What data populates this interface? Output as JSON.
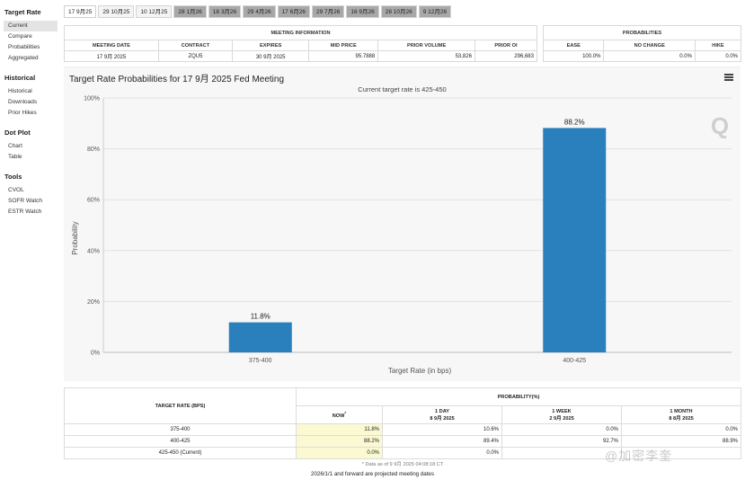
{
  "sidebar": {
    "sections": [
      {
        "heading": "Target Rate",
        "items": [
          "Current",
          "Compare",
          "Probabilities",
          "Aggregated"
        ]
      },
      {
        "heading": "Historical",
        "items": [
          "Historical",
          "Downloads",
          "Prior Hikes"
        ]
      },
      {
        "heading": "Dot Plot",
        "items": [
          "Chart",
          "Table"
        ]
      },
      {
        "heading": "Tools",
        "items": [
          "CVOL",
          "SOFR Watch",
          "ESTR Watch"
        ]
      }
    ],
    "active": "Current"
  },
  "tabs": [
    "17 9月25",
    "29 10月25",
    "10 12月25",
    "28 1月26",
    "18 3月26",
    "29 4月26",
    "17 6月26",
    "29 7月26",
    "16 9月26",
    "28 10月26",
    "9 12月26"
  ],
  "meeting_info": {
    "title": "MEETING INFORMATION",
    "headers": [
      "MEETING DATE",
      "CONTRACT",
      "EXPIRES",
      "MID PRICE",
      "PRIOR VOLUME",
      "PRIOR OI"
    ],
    "values": [
      "17 9月 2025",
      "ZQU5",
      "30 9月 2025",
      "95.7888",
      "53,826",
      "296,683"
    ]
  },
  "probabilities_info": {
    "title": "PROBABILITIES",
    "headers": [
      "EASE",
      "NO CHANGE",
      "HIKE"
    ],
    "values": [
      "100.0%",
      "0.0%",
      "0.0%"
    ]
  },
  "chart": {
    "title": "Target Rate Probabilities for 17 9月 2025 Fed Meeting",
    "subtitle": "Current target rate is 425-450",
    "watermark_letter": "Q"
  },
  "chart_data": {
    "type": "bar",
    "categories": [
      "375-400",
      "400-425"
    ],
    "values": [
      11.8,
      88.2
    ],
    "data_labels": [
      "11.8%",
      "88.2%"
    ],
    "xlabel": "Target Rate (in bps)",
    "ylabel": "Probability",
    "ylim": [
      0,
      100
    ],
    "yticks": [
      "0%",
      "20%",
      "40%",
      "60%",
      "80%",
      "100%"
    ],
    "bar_color": "#2a7fbd",
    "grid": true,
    "legend": "none"
  },
  "prob_table": {
    "col_target": "TARGET RATE (BPS)",
    "col_group": "PROBABILITY(%)",
    "columns": [
      {
        "label": "NOW",
        "sup": "*",
        "sub": ""
      },
      {
        "label": "1 DAY",
        "sup": "",
        "sub": "8 9月 2025"
      },
      {
        "label": "1 WEEK",
        "sup": "",
        "sub": "2 9月 2025"
      },
      {
        "label": "1 MONTH",
        "sup": "",
        "sub": "8 8月 2025"
      }
    ],
    "rows": [
      {
        "rate": "375-400",
        "values": [
          "11.8%",
          "10.6%",
          "0.0%",
          "0.0%"
        ]
      },
      {
        "rate": "400-425",
        "values": [
          "88.2%",
          "89.4%",
          "92.7%",
          "88.9%"
        ]
      },
      {
        "rate": "425-450 (Current)",
        "values": [
          "0.0%",
          "0.0%",
          "",
          ""
        ]
      }
    ],
    "note": "* Data as of 9 9月 2025 04:08:18 CT"
  },
  "footer_note": "2026/1/1 and forward are projected meeting dates",
  "watermark_text": "@加密李奎"
}
